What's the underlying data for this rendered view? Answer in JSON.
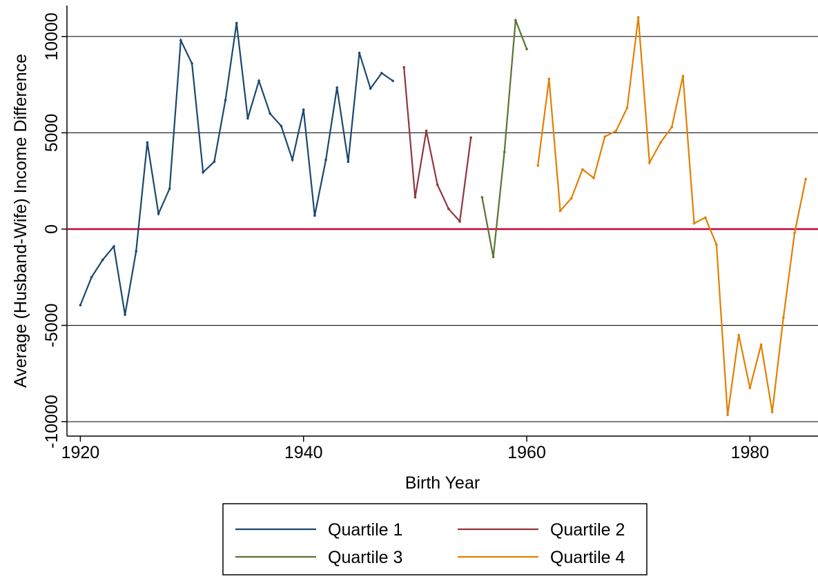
{
  "chart_data": {
    "type": "line",
    "x_label": "Birth Year",
    "y_label": "Average (Husband-Wife) Income Difference",
    "xlim": [
      1918.8,
      1986.1
    ],
    "xticks": [
      1920,
      1940,
      1960,
      1980
    ],
    "ylim": [
      -10750,
      11610
    ],
    "yticks": [
      -10000,
      -5000,
      0,
      5000,
      10000
    ],
    "grid": true,
    "yline": 0,
    "yline_color": "#c10534",
    "legend": "bottom",
    "series": [
      {
        "name": "Quartile 1",
        "color": "#1a476f",
        "x": [
          1920,
          1921,
          1922,
          1923,
          1924,
          1925,
          1926,
          1927,
          1928,
          1929,
          1930,
          1931,
          1932,
          1933,
          1934,
          1935,
          1936,
          1937,
          1938,
          1939,
          1940,
          1941,
          1942,
          1943,
          1944,
          1945,
          1946,
          1947,
          1948
        ],
        "values": [
          -3950,
          -2500,
          -1600,
          -900,
          -4450,
          -1150,
          4500,
          800,
          2100,
          9800,
          8600,
          2950,
          3500,
          6700,
          10700,
          5750,
          7700,
          6000,
          5350,
          3600,
          6200,
          700,
          3600,
          7350,
          3500,
          9150,
          7300,
          8100,
          7700
        ]
      },
      {
        "name": "Quartile 2",
        "color": "#90353b",
        "x": [
          1949,
          1950,
          1951,
          1952,
          1953,
          1954,
          1955
        ],
        "values": [
          8400,
          1650,
          5100,
          2300,
          1050,
          400,
          4750
        ]
      },
      {
        "name": "Quartile 3",
        "color": "#55752f",
        "x": [
          1956,
          1957,
          1958,
          1959,
          1960
        ],
        "values": [
          1650,
          -1450,
          4000,
          10850,
          9350
        ]
      },
      {
        "name": "Quartile 4",
        "color": "#e37e00",
        "x": [
          1961,
          1962,
          1963,
          1964,
          1965,
          1966,
          1967,
          1968,
          1969,
          1970,
          1971,
          1972,
          1973,
          1974,
          1975,
          1976,
          1977,
          1978,
          1979,
          1980,
          1981,
          1982,
          1983,
          1984,
          1985
        ],
        "values": [
          3300,
          7800,
          950,
          1600,
          3100,
          2650,
          4800,
          5100,
          6300,
          11000,
          3450,
          4500,
          5300,
          7950,
          300,
          600,
          -800,
          -9650,
          -5500,
          -8250,
          -6000,
          -9500,
          -4600,
          -200,
          2600
        ]
      }
    ]
  }
}
